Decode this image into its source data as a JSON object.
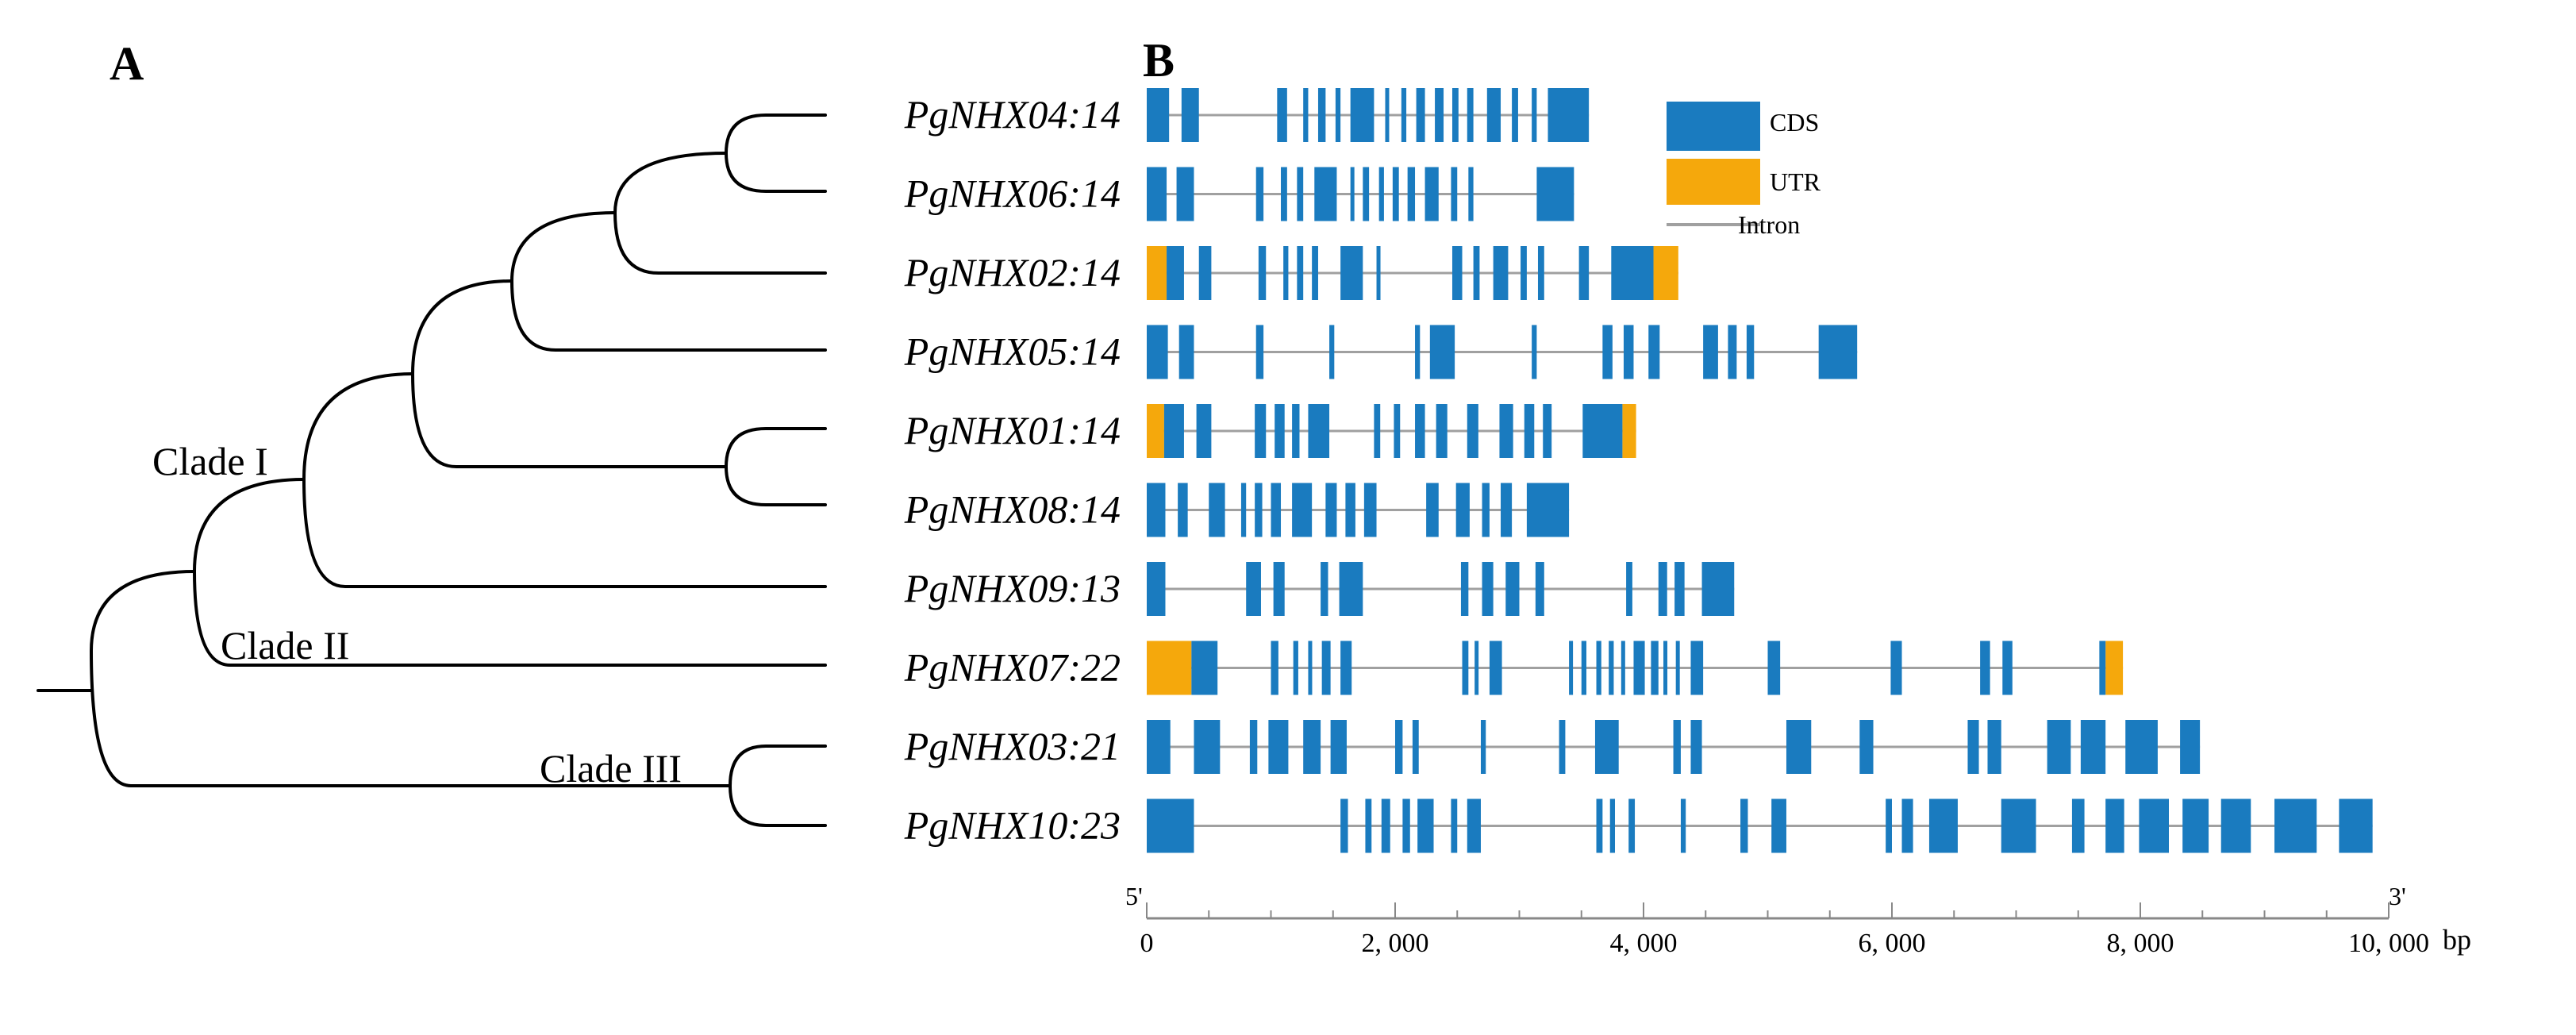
{
  "panel_a": {
    "letter": "A"
  },
  "panel_b": {
    "letter": "B"
  },
  "clades": [
    "Clade I",
    "Clade II",
    "Clade III"
  ],
  "genes": [
    {
      "name": "PgNHX04",
      "count": "14"
    },
    {
      "name": "PgNHX06",
      "count": "14"
    },
    {
      "name": "PgNHX02",
      "count": "14"
    },
    {
      "name": "PgNHX05",
      "count": "14"
    },
    {
      "name": "PgNHX01",
      "count": "14"
    },
    {
      "name": "PgNHX08",
      "count": "14"
    },
    {
      "name": "PgNHX09",
      "count": "13"
    },
    {
      "name": "PgNHX07",
      "count": "22"
    },
    {
      "name": "PgNHX03",
      "count": "21"
    },
    {
      "name": "PgNHX10",
      "count": "23"
    }
  ],
  "legend": [
    {
      "label": "CDS",
      "type": "box",
      "color": "#1a7bbf"
    },
    {
      "label": "UTR",
      "type": "box",
      "color": "#f5a80c"
    },
    {
      "label": "Intron",
      "type": "line",
      "color": "#a0a0a0"
    }
  ],
  "axis": {
    "min": 0,
    "max": 10000,
    "unit": "bp",
    "end_left": "5'",
    "end_right": "3'",
    "ticks": [
      {
        "value": 0,
        "label": "0"
      },
      {
        "value": 2000,
        "label": "2, 000"
      },
      {
        "value": 4000,
        "label": "4, 000"
      },
      {
        "value": 6000,
        "label": "6, 000"
      },
      {
        "value": 8000,
        "label": "8, 000"
      },
      {
        "value": 10000,
        "label": "10, 000"
      }
    ]
  },
  "chart_data": {
    "type": "gene structure",
    "x_range": [
      0,
      10000
    ],
    "x_unit": "bp",
    "rows": [
      {
        "gene": "PgNHX04",
        "length": 3560,
        "utr": [],
        "cds": [
          [
            0,
            180
          ],
          [
            280,
            420
          ],
          [
            1050,
            1130
          ],
          [
            1260,
            1300
          ],
          [
            1380,
            1440
          ],
          [
            1520,
            1560
          ],
          [
            1640,
            1830
          ],
          [
            1920,
            1950
          ],
          [
            2050,
            2090
          ],
          [
            2170,
            2240
          ],
          [
            2320,
            2390
          ],
          [
            2460,
            2510
          ],
          [
            2580,
            2630
          ],
          [
            2740,
            2850
          ],
          [
            2940,
            2990
          ],
          [
            3100,
            3140
          ],
          [
            3230,
            3560
          ]
        ]
      },
      {
        "gene": "PgNHX06",
        "length": 3440,
        "utr": [],
        "cds": [
          [
            0,
            160
          ],
          [
            240,
            380
          ],
          [
            880,
            940
          ],
          [
            1080,
            1130
          ],
          [
            1210,
            1260
          ],
          [
            1350,
            1530
          ],
          [
            1640,
            1670
          ],
          [
            1740,
            1790
          ],
          [
            1870,
            1910
          ],
          [
            1980,
            2030
          ],
          [
            2100,
            2160
          ],
          [
            2240,
            2350
          ],
          [
            2450,
            2500
          ],
          [
            2590,
            2630
          ],
          [
            3140,
            3440
          ]
        ]
      },
      {
        "gene": "PgNHX02",
        "length": 4280,
        "utr": [
          [
            0,
            160
          ],
          [
            4080,
            4280
          ]
        ],
        "cds": [
          [
            160,
            300
          ],
          [
            420,
            520
          ],
          [
            900,
            960
          ],
          [
            1100,
            1140
          ],
          [
            1210,
            1260
          ],
          [
            1330,
            1380
          ],
          [
            1560,
            1740
          ],
          [
            1850,
            1880
          ],
          [
            2460,
            2540
          ],
          [
            2630,
            2680
          ],
          [
            2790,
            2910
          ],
          [
            3010,
            3060
          ],
          [
            3150,
            3200
          ],
          [
            3480,
            3560
          ],
          [
            3740,
            4080
          ]
        ]
      },
      {
        "gene": "PgNHX05",
        "length": 5720,
        "utr": [],
        "cds": [
          [
            0,
            170
          ],
          [
            260,
            380
          ],
          [
            880,
            940
          ],
          [
            1470,
            1510
          ],
          [
            2160,
            2200
          ],
          [
            2280,
            2480
          ],
          [
            3100,
            3140
          ],
          [
            3670,
            3750
          ],
          [
            3840,
            3920
          ],
          [
            4040,
            4130
          ],
          [
            4480,
            4600
          ],
          [
            4680,
            4750
          ],
          [
            4830,
            4890
          ],
          [
            5410,
            5720
          ]
        ]
      },
      {
        "gene": "PgNHX01",
        "length": 3940,
        "utr": [
          [
            0,
            140
          ],
          [
            3830,
            3940
          ]
        ],
        "cds": [
          [
            140,
            300
          ],
          [
            400,
            520
          ],
          [
            870,
            960
          ],
          [
            1030,
            1110
          ],
          [
            1170,
            1230
          ],
          [
            1300,
            1470
          ],
          [
            1830,
            1880
          ],
          [
            1990,
            2040
          ],
          [
            2160,
            2240
          ],
          [
            2330,
            2420
          ],
          [
            2580,
            2670
          ],
          [
            2840,
            2950
          ],
          [
            3040,
            3120
          ],
          [
            3190,
            3260
          ],
          [
            3510,
            3830
          ]
        ]
      },
      {
        "gene": "PgNHX08",
        "length": 3400,
        "utr": [],
        "cds": [
          [
            0,
            150
          ],
          [
            250,
            330
          ],
          [
            500,
            630
          ],
          [
            760,
            800
          ],
          [
            870,
            930
          ],
          [
            1000,
            1080
          ],
          [
            1170,
            1330
          ],
          [
            1440,
            1530
          ],
          [
            1600,
            1680
          ],
          [
            1750,
            1850
          ],
          [
            2250,
            2350
          ],
          [
            2490,
            2600
          ],
          [
            2700,
            2760
          ],
          [
            2850,
            2940
          ],
          [
            3060,
            3400
          ]
        ]
      },
      {
        "gene": "PgNHX09",
        "length": 4730,
        "utr": [],
        "cds": [
          [
            0,
            150
          ],
          [
            800,
            920
          ],
          [
            1020,
            1110
          ],
          [
            1400,
            1460
          ],
          [
            1550,
            1740
          ],
          [
            2530,
            2590
          ],
          [
            2700,
            2790
          ],
          [
            2890,
            3000
          ],
          [
            3130,
            3200
          ],
          [
            3860,
            3910
          ],
          [
            4120,
            4190
          ],
          [
            4250,
            4330
          ],
          [
            4470,
            4730
          ]
        ]
      },
      {
        "gene": "PgNHX07",
        "length": 7860,
        "utr": [
          [
            0,
            360
          ],
          [
            7720,
            7860
          ]
        ],
        "cds": [
          [
            360,
            570
          ],
          [
            1000,
            1060
          ],
          [
            1180,
            1220
          ],
          [
            1300,
            1330
          ],
          [
            1410,
            1480
          ],
          [
            1560,
            1650
          ],
          [
            2540,
            2590
          ],
          [
            2640,
            2660
          ],
          [
            2760,
            2860
          ],
          [
            3400,
            3430
          ],
          [
            3500,
            3540
          ],
          [
            3620,
            3660
          ],
          [
            3720,
            3760
          ],
          [
            3820,
            3850
          ],
          [
            3920,
            4010
          ],
          [
            4060,
            4120
          ],
          [
            4160,
            4190
          ],
          [
            4260,
            4280
          ],
          [
            4380,
            4480
          ],
          [
            5000,
            5100
          ],
          [
            5990,
            6080
          ],
          [
            6710,
            6790
          ],
          [
            6890,
            6970
          ],
          [
            7670,
            7720
          ]
        ]
      },
      {
        "gene": "PgNHX03",
        "length": 8480,
        "utr": [],
        "cds": [
          [
            0,
            190
          ],
          [
            380,
            590
          ],
          [
            830,
            890
          ],
          [
            980,
            1140
          ],
          [
            1260,
            1400
          ],
          [
            1480,
            1610
          ],
          [
            2000,
            2060
          ],
          [
            2140,
            2190
          ],
          [
            2690,
            2730
          ],
          [
            3320,
            3370
          ],
          [
            3610,
            3800
          ],
          [
            4240,
            4300
          ],
          [
            4380,
            4470
          ],
          [
            5150,
            5350
          ],
          [
            5740,
            5850
          ],
          [
            6610,
            6700
          ],
          [
            6770,
            6880
          ],
          [
            7250,
            7440
          ],
          [
            7520,
            7720
          ],
          [
            7880,
            8140
          ],
          [
            8320,
            8480
          ]
        ]
      },
      {
        "gene": "PgNHX10",
        "length": 9870,
        "utr": [],
        "cds": [
          [
            0,
            380
          ],
          [
            1560,
            1620
          ],
          [
            1760,
            1810
          ],
          [
            1890,
            1960
          ],
          [
            2060,
            2120
          ],
          [
            2180,
            2310
          ],
          [
            2450,
            2500
          ],
          [
            2580,
            2690
          ],
          [
            3620,
            3670
          ],
          [
            3730,
            3770
          ],
          [
            3880,
            3930
          ],
          [
            4300,
            4340
          ],
          [
            4780,
            4840
          ],
          [
            5030,
            5150
          ],
          [
            5950,
            6000
          ],
          [
            6080,
            6170
          ],
          [
            6300,
            6530
          ],
          [
            6880,
            7160
          ],
          [
            7450,
            7550
          ],
          [
            7720,
            7870
          ],
          [
            7990,
            8230
          ],
          [
            8340,
            8550
          ],
          [
            8650,
            8890
          ],
          [
            9080,
            9420
          ],
          [
            9600,
            9870
          ]
        ]
      }
    ]
  }
}
